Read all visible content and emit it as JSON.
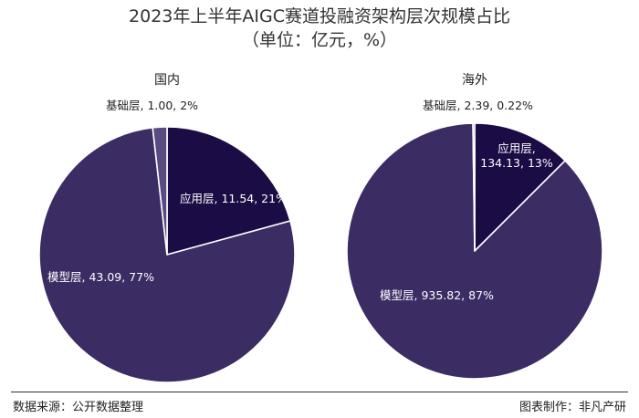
{
  "header": {
    "title": "2023年上半年AIGC赛道投融资架构层次规模占比",
    "subtitle": "（单位：亿元，%）"
  },
  "footer": {
    "source": "数据来源：公开数据整理",
    "credit": "图表制作：非凡产研"
  },
  "colors": {
    "model_layer": "#3c2c64",
    "application_layer": "#1b0c45",
    "base_layer": "#5a4a82",
    "outside_label": "#222222",
    "inside_label": "#ffffff"
  },
  "chart_data": [
    {
      "type": "pie",
      "title": "国内",
      "start_angle_deg": 0,
      "slices": [
        {
          "name": "应用层",
          "value": 11.54,
          "percent": "21%",
          "label": "应用层, 11.54, 21%",
          "color": "#1b0c45"
        },
        {
          "name": "模型层",
          "value": 43.09,
          "percent": "77%",
          "label": "模型层, 43.09, 77%",
          "color": "#3c2c64"
        },
        {
          "name": "基础层",
          "value": 1.0,
          "percent": "2%",
          "label": "基础层, 1.00, 2%",
          "color": "#5a4a82"
        }
      ]
    },
    {
      "type": "pie",
      "title": "海外",
      "start_angle_deg": 0,
      "slices": [
        {
          "name": "应用层",
          "value": 134.13,
          "percent": "13%",
          "label_lines": [
            "应用层,",
            "134.13, 13%"
          ],
          "color": "#1b0c45"
        },
        {
          "name": "模型层",
          "value": 935.82,
          "percent": "87%",
          "label": "模型层, 935.82, 87%",
          "color": "#3c2c64"
        },
        {
          "name": "基础层",
          "value": 2.39,
          "percent": "0.22%",
          "label": "基础层, 2.39, 0.22%",
          "color": "#5a4a82"
        }
      ]
    }
  ]
}
